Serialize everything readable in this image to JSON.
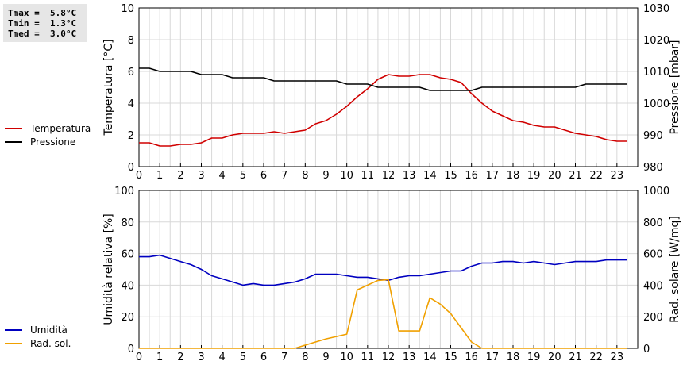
{
  "stats": {
    "tmax": "Tmax =  5.8°C",
    "tmin": "Tmin =  1.3°C",
    "tmed": "Tmed =  3.0°C"
  },
  "chart_data": [
    {
      "type": "line",
      "xlim": [
        0,
        24
      ],
      "xticks": [
        "0",
        "1",
        "2",
        "3",
        "4",
        "5",
        "6",
        "7",
        "8",
        "9",
        "10",
        "11",
        "12",
        "13",
        "14",
        "15",
        "16",
        "17",
        "18",
        "19",
        "20",
        "21",
        "22",
        "23"
      ],
      "ylabel": "Temperatura [°C]",
      "ylim": [
        0,
        10
      ],
      "yticks": [
        "0",
        "2",
        "4",
        "6",
        "8",
        "10"
      ],
      "y2label": "Pressione [mbar]",
      "y2lim": [
        980,
        1030
      ],
      "y2ticks": [
        "980",
        "990",
        "1000",
        "1010",
        "1020",
        "1030"
      ],
      "grid": true,
      "legend_position": "left",
      "series": [
        {
          "name": "Temperatura",
          "axis": "left",
          "color": "#d00000",
          "x": [
            0,
            0.5,
            1,
            1.5,
            2,
            2.5,
            3,
            3.5,
            4,
            4.5,
            5,
            5.5,
            6,
            6.5,
            7,
            7.5,
            8,
            8.5,
            9,
            9.5,
            10,
            10.5,
            11,
            11.5,
            12,
            12.5,
            13,
            13.5,
            14,
            14.5,
            15,
            15.5,
            16,
            16.5,
            17,
            17.5,
            18,
            18.5,
            19,
            19.5,
            20,
            20.5,
            21,
            21.5,
            22,
            22.5,
            23,
            23.5
          ],
          "y": [
            1.5,
            1.5,
            1.3,
            1.3,
            1.4,
            1.4,
            1.5,
            1.8,
            1.8,
            2.0,
            2.1,
            2.1,
            2.1,
            2.2,
            2.1,
            2.2,
            2.3,
            2.7,
            2.9,
            3.3,
            3.8,
            4.4,
            4.9,
            5.5,
            5.8,
            5.7,
            5.7,
            5.8,
            5.8,
            5.6,
            5.5,
            5.3,
            4.6,
            4.0,
            3.5,
            3.2,
            2.9,
            2.8,
            2.6,
            2.5,
            2.5,
            2.3,
            2.1,
            2.0,
            1.9,
            1.7,
            1.6,
            1.6
          ]
        },
        {
          "name": "Pressione",
          "axis": "right",
          "color": "#000000",
          "x": [
            0,
            0.5,
            1,
            2,
            2.5,
            3,
            3.5,
            4,
            4.5,
            5,
            5.5,
            6,
            6.5,
            7,
            8,
            8.5,
            9,
            9.5,
            10,
            10.5,
            11,
            11.5,
            12,
            13,
            13.5,
            14,
            14.5,
            15,
            15.5,
            16,
            16.5,
            17,
            18,
            19,
            20,
            21,
            21.5,
            22,
            23,
            23.5
          ],
          "y": [
            1011,
            1011,
            1010,
            1010,
            1010,
            1009,
            1009,
            1009,
            1008,
            1008,
            1008,
            1008,
            1007,
            1007,
            1007,
            1007,
            1007,
            1007,
            1006,
            1006,
            1006,
            1005,
            1005,
            1005,
            1005,
            1004,
            1004,
            1004,
            1004,
            1004,
            1005,
            1005,
            1005,
            1005,
            1005,
            1005,
            1006,
            1006,
            1006,
            1006
          ]
        }
      ]
    },
    {
      "type": "line",
      "xlim": [
        0,
        24
      ],
      "xticks": [
        "0",
        "1",
        "2",
        "3",
        "4",
        "5",
        "6",
        "7",
        "8",
        "9",
        "10",
        "11",
        "12",
        "13",
        "14",
        "15",
        "16",
        "17",
        "18",
        "19",
        "20",
        "21",
        "22",
        "23"
      ],
      "ylabel": "Umidità relativa [%]",
      "ylim": [
        0,
        100
      ],
      "yticks": [
        "0",
        "20",
        "40",
        "60",
        "80",
        "100"
      ],
      "y2label": "Rad. solare [W/mq]",
      "y2lim": [
        0,
        1000
      ],
      "y2ticks": [
        "0",
        "200",
        "400",
        "600",
        "800",
        "1000"
      ],
      "grid": true,
      "legend_position": "left",
      "series": [
        {
          "name": "Umidità",
          "axis": "left",
          "color": "#0000c0",
          "x": [
            0,
            0.5,
            1,
            1.5,
            2,
            2.5,
            3,
            3.5,
            4,
            4.5,
            5,
            5.5,
            6,
            6.5,
            7,
            7.5,
            8,
            8.5,
            9,
            9.5,
            10,
            10.5,
            11,
            11.5,
            12,
            12.5,
            13,
            13.5,
            14,
            14.5,
            15,
            15.5,
            16,
            16.5,
            17,
            17.5,
            18,
            18.5,
            19,
            19.5,
            20,
            20.5,
            21,
            21.5,
            22,
            22.5,
            23,
            23.5
          ],
          "y": [
            58,
            58,
            59,
            57,
            55,
            53,
            50,
            46,
            44,
            42,
            40,
            41,
            40,
            40,
            41,
            42,
            44,
            47,
            47,
            47,
            46,
            45,
            45,
            44,
            43,
            45,
            46,
            46,
            47,
            48,
            49,
            49,
            52,
            54,
            54,
            55,
            55,
            54,
            55,
            54,
            53,
            54,
            55,
            55,
            55,
            56,
            56,
            56
          ]
        },
        {
          "name": "Rad. sol.",
          "axis": "right",
          "color": "#f0a000",
          "x": [
            0,
            7.5,
            8,
            8.5,
            9,
            9.5,
            10,
            10.5,
            11,
            11.5,
            12,
            12.5,
            13,
            13.5,
            14,
            14.5,
            15,
            15.5,
            16,
            16.5,
            17,
            23.5
          ],
          "y": [
            0,
            0,
            20,
            40,
            60,
            75,
            90,
            370,
            400,
            430,
            435,
            110,
            110,
            110,
            320,
            280,
            220,
            130,
            40,
            0,
            0,
            0
          ]
        }
      ]
    }
  ]
}
